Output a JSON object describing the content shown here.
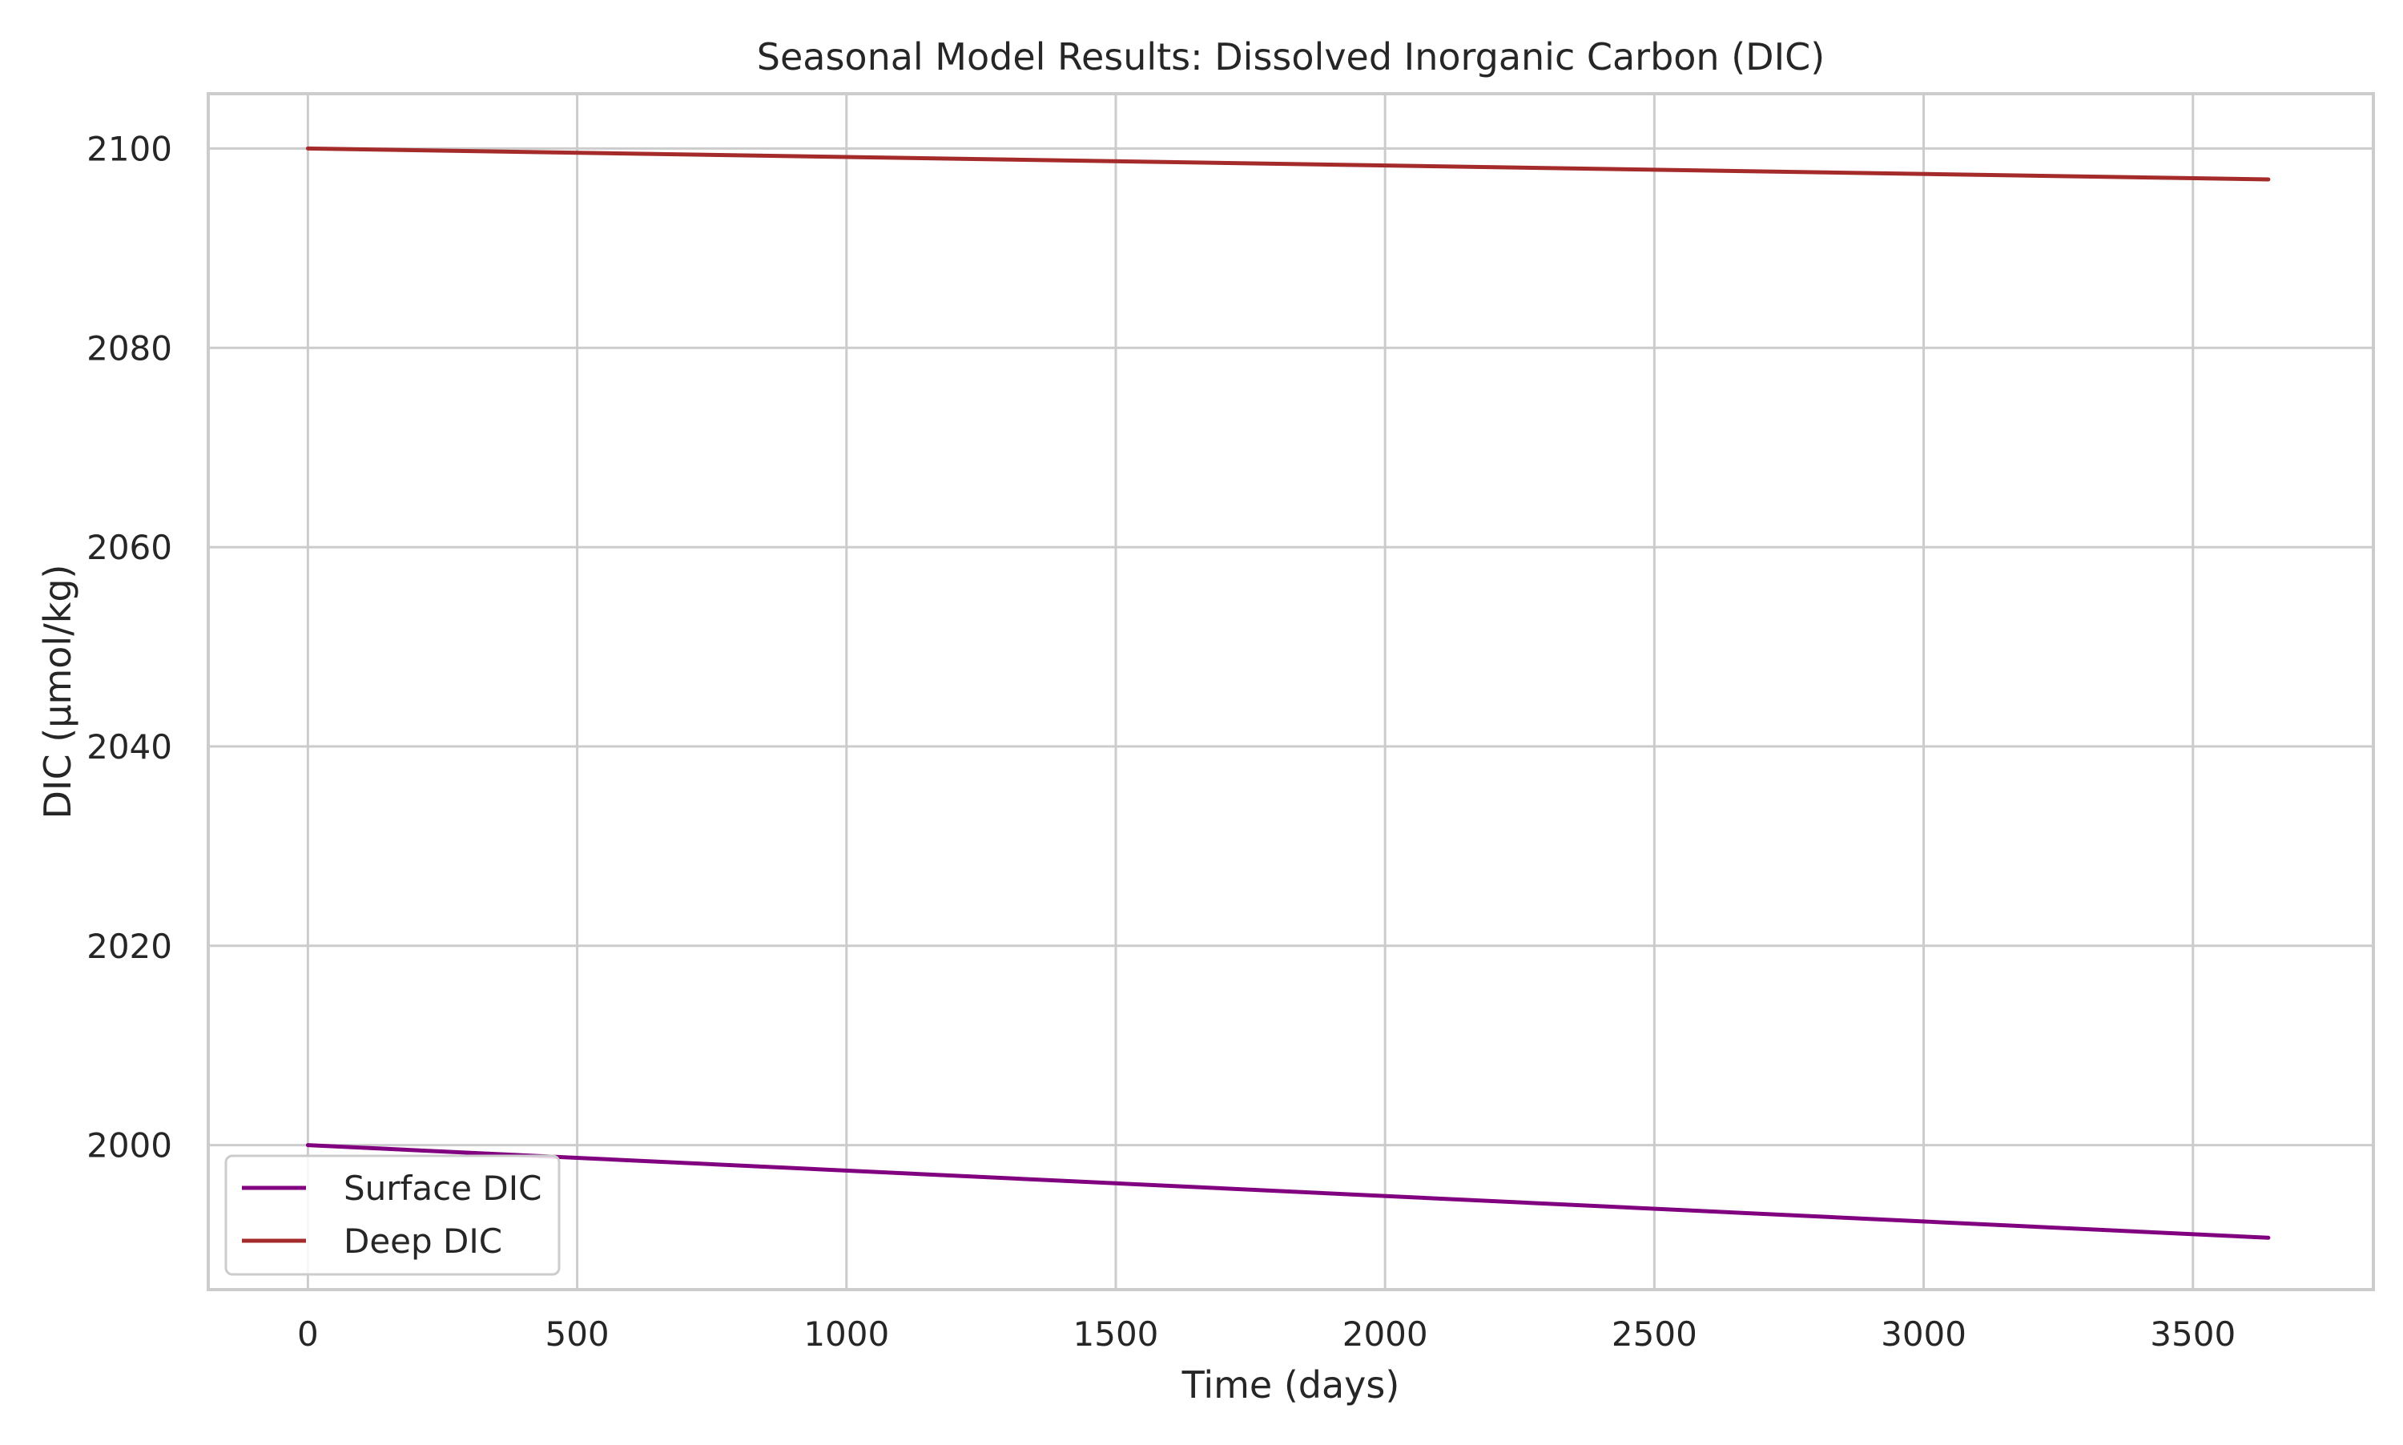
{
  "chart_data": {
    "type": "line",
    "title": "Seasonal Model Results: Dissolved Inorganic Carbon (DIC)",
    "xlabel": "Time (days)",
    "ylabel": "DIC (µmol/kg)",
    "xlim": [
      -185,
      3835
    ],
    "ylim": [
      1985.5,
      2105.5
    ],
    "xticks": [
      0,
      500,
      1000,
      1500,
      2000,
      2500,
      3000,
      3500
    ],
    "yticks": [
      2000,
      2020,
      2040,
      2060,
      2080,
      2100
    ],
    "x_tick_labels": [
      "0",
      "500",
      "1000",
      "1500",
      "2000",
      "2500",
      "3000",
      "3500"
    ],
    "y_tick_labels": [
      "2000",
      "2020",
      "2040",
      "2060",
      "2080",
      "2100"
    ],
    "grid": true,
    "legend_position": "lower-left",
    "series": [
      {
        "name": "Surface DIC",
        "color": "#800080",
        "x": [
          0,
          3640
        ],
        "y": [
          2000,
          1990.7
        ]
      },
      {
        "name": "Deep DIC",
        "color": "#a52a2a",
        "x": [
          0,
          3640
        ],
        "y": [
          2100,
          2096.9
        ]
      }
    ]
  }
}
